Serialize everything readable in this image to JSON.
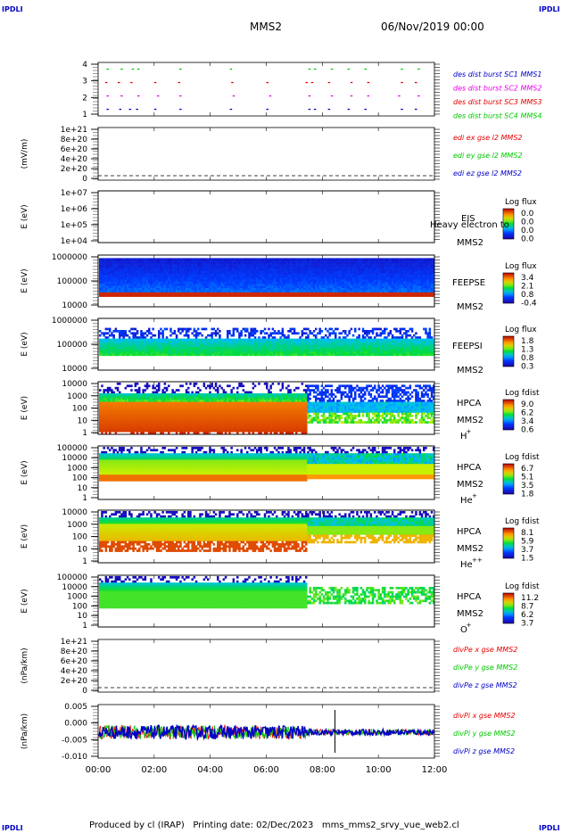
{
  "header": {
    "corner_label": "IPDLI",
    "spacecraft": "MMS2",
    "datetime": "06/Nov/2019 00:00"
  },
  "footer": {
    "produced_by": "Produced by cl (IRAP)",
    "printing_date": "Printing date: 02/Dec/2023",
    "script": "mms_mms2_srvy_vue_web2.cl"
  },
  "time_axis": {
    "ticks": [
      "00:00",
      "02:00",
      "04:00",
      "06:00",
      "08:00",
      "10:00",
      "12:00"
    ],
    "range_hours": [
      0,
      12
    ]
  },
  "colors": {
    "mms1": "#0000c8",
    "mms2": "#e600e6",
    "mms3": "#e60000",
    "mms4": "#00c800",
    "x": "#e60000",
    "y": "#00c800",
    "z": "#0000c8"
  },
  "chart_data": [
    {
      "type": "scatter",
      "id": "des_burst",
      "yticks": [
        "1",
        "2",
        "3",
        "4"
      ],
      "ylim": [
        0.5,
        4.5
      ],
      "legend": [
        {
          "label": "des dist burst SC1 MMS1",
          "color": "#0000c8"
        },
        {
          "label": "des dist burst SC2 MMS2",
          "color": "#e600e6"
        },
        {
          "label": "des dist burst SC3 MMS3",
          "color": "#e60000"
        },
        {
          "label": "des dist burst SC4 MMS4",
          "color": "#00c800"
        }
      ],
      "series": [
        {
          "sc": 1,
          "color": "#0000c8",
          "times": [
            0.3,
            0.75,
            1.1,
            1.35,
            2.0,
            2.9,
            4.7,
            6.0,
            7.5,
            7.7,
            8.2,
            8.9,
            9.5,
            10.8,
            11.3
          ]
        },
        {
          "sc": 2,
          "color": "#e600e6",
          "times": [
            0.3,
            0.8,
            1.4,
            2.1,
            2.9,
            4.8,
            6.1,
            7.5,
            8.3,
            9.0,
            9.6,
            10.7,
            11.4
          ]
        },
        {
          "sc": 3,
          "color": "#e60000",
          "times": [
            0.25,
            0.7,
            1.15,
            2.0,
            2.85,
            4.75,
            6.0,
            7.4,
            7.6,
            8.2,
            9.0,
            9.6,
            10.8,
            11.3
          ]
        },
        {
          "sc": 4,
          "color": "#00c800",
          "times": [
            0.3,
            0.8,
            1.2,
            1.4,
            2.9,
            4.7,
            7.5,
            7.7,
            8.3,
            8.9,
            9.5,
            10.8,
            11.4
          ]
        }
      ]
    },
    {
      "type": "line",
      "id": "edi",
      "ylabel": "(mV/m)",
      "yticks": [
        "0",
        "2e+20",
        "4e+20",
        "6e+20",
        "8e+20",
        "1e+21"
      ],
      "ylim": [
        0,
        1e+21
      ],
      "legend": [
        {
          "label": "edi ex gse l2 MMS2",
          "color": "#e60000"
        },
        {
          "label": "edi ey gse l2 MMS2",
          "color": "#00c800"
        },
        {
          "label": "edi ez gse l2 MMS2",
          "color": "#0000c8"
        }
      ]
    },
    {
      "type": "heatmap",
      "id": "eis",
      "ylabel": "E (eV)",
      "yticks": [
        "1e+04",
        "1e+05",
        "1e+06",
        "1e+07"
      ],
      "labels": [
        "EIS",
        "Heavy electron to",
        "MMS2"
      ],
      "colorbar": {
        "title": "Log flux",
        "ticks": [
          "0.0",
          "0.0",
          "0.0",
          "0.0"
        ]
      }
    },
    {
      "type": "heatmap",
      "id": "feepse",
      "ylabel": "E (eV)",
      "yticks": [
        "10000",
        "100000",
        "1000000"
      ],
      "labels": [
        "FEEPSE",
        "MMS2"
      ],
      "colorbar": {
        "title": "Log flux",
        "ticks": [
          "3.4",
          "2.1",
          "0.8",
          "-0.4"
        ]
      }
    },
    {
      "type": "heatmap",
      "id": "feepsi",
      "ylabel": "E (eV)",
      "yticks": [
        "10000",
        "100000",
        "1000000"
      ],
      "labels": [
        "FEEPSI",
        "MMS2"
      ],
      "colorbar": {
        "title": "Log flux",
        "ticks": [
          "1.8",
          "1.3",
          "0.8",
          "0.3"
        ]
      }
    },
    {
      "type": "heatmap",
      "id": "hpca_h",
      "ylabel": "E (eV)",
      "yticks": [
        "1",
        "10",
        "100",
        "1000",
        "10000"
      ],
      "labels": [
        "HPCA",
        "MMS2",
        "H",
        "+"
      ],
      "colorbar": {
        "title": "Log fdist",
        "ticks": [
          "9.0",
          "6.2",
          "3.4",
          "0.6"
        ]
      }
    },
    {
      "type": "heatmap",
      "id": "hpca_he",
      "ylabel": "E (eV)",
      "yticks": [
        "1",
        "10",
        "100",
        "1000",
        "10000",
        "100000"
      ],
      "labels": [
        "HPCA",
        "MMS2",
        "He",
        "+"
      ],
      "colorbar": {
        "title": "Log fdist",
        "ticks": [
          "6.7",
          "5.1",
          "3.5",
          "1.8"
        ]
      }
    },
    {
      "type": "heatmap",
      "id": "hpca_hepp",
      "ylabel": "E (eV)",
      "yticks": [
        "1",
        "10",
        "100",
        "1000",
        "10000"
      ],
      "labels": [
        "HPCA",
        "MMS2",
        "He",
        "++"
      ],
      "colorbar": {
        "title": "Log fdist",
        "ticks": [
          "8.1",
          "5.9",
          "3.7",
          "1.5"
        ]
      }
    },
    {
      "type": "heatmap",
      "id": "hpca_o",
      "ylabel": "E (eV)",
      "yticks": [
        "1",
        "10",
        "100",
        "1000",
        "10000",
        "100000"
      ],
      "labels": [
        "HPCA",
        "MMS2",
        "O",
        "+"
      ],
      "colorbar": {
        "title": "Log fdist",
        "ticks": [
          "11.2",
          "8.7",
          "6.2",
          "3.7"
        ]
      }
    },
    {
      "type": "line",
      "id": "divpe",
      "ylabel": "(nPa/km)",
      "yticks": [
        "0",
        "2e+20",
        "4e+20",
        "6e+20",
        "8e+20",
        "1e+21"
      ],
      "ylim": [
        0,
        1e+21
      ],
      "legend": [
        {
          "label": "divPe x gse MMS2",
          "color": "#e60000"
        },
        {
          "label": "divPe y gse MMS2",
          "color": "#00c800"
        },
        {
          "label": "divPe z gse MMS2",
          "color": "#0000c8"
        }
      ]
    },
    {
      "type": "line",
      "id": "divpi",
      "ylabel": "(nPa/km)",
      "yticks": [
        "-0.010",
        "-0.005",
        "0.000",
        "0.005"
      ],
      "ylim": [
        -0.0125,
        0.0075
      ],
      "legend": [
        {
          "label": "divPi x gse MMS2",
          "color": "#e60000"
        },
        {
          "label": "divPi y gse MMS2",
          "color": "#00c800"
        },
        {
          "label": "divPi z gse MMS2",
          "color": "#0000c8"
        }
      ]
    }
  ]
}
